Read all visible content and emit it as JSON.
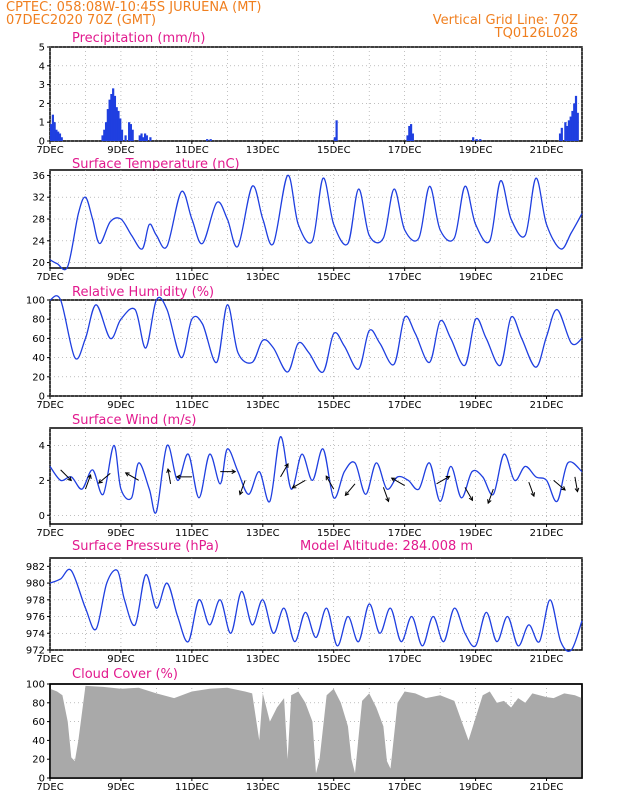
{
  "header": {
    "line1_left": "CPTEC:   058:08W-10:45S   JURUENA (MT)",
    "line2_left": "07DEC2020 70Z (GMT)",
    "line2_right": "Vertical Grid Line: 70Z",
    "line3_right": "TQ0126L028"
  },
  "colors": {
    "header": "#f07f1f",
    "title": "#e21a8e",
    "line": "#1f3fe0",
    "bars": "#1f3fe0",
    "cloud": "#a9a9a9"
  },
  "x_axis": {
    "labels": [
      "7DEC",
      "9DEC",
      "11DEC",
      "13DEC",
      "15DEC",
      "17DEC",
      "19DEC",
      "21DEC"
    ],
    "start_day": 7,
    "end_day": 22
  },
  "panels": {
    "precip": {
      "title": "Precipitation (mm/h)"
    },
    "temp": {
      "title": "Surface Temperature (nC)"
    },
    "rh": {
      "title": "Relative Humidity (%)"
    },
    "wind": {
      "title": "Surface Wind (m/s)"
    },
    "pres": {
      "title": "Surface Pressure (hPa)",
      "extra": "Model Altitude: 284.008 m"
    },
    "cloud": {
      "title": "Cloud Cover (%)"
    }
  },
  "chart_data": [
    {
      "type": "bar",
      "title": "Precipitation (mm/h)",
      "ylim": [
        0,
        5
      ],
      "yticks": [
        0,
        1,
        2,
        3,
        4,
        5
      ],
      "x": [
        7.0,
        7.05,
        7.1,
        7.15,
        7.2,
        7.25,
        7.3,
        8.45,
        8.5,
        8.55,
        8.6,
        8.65,
        8.7,
        8.75,
        8.8,
        8.85,
        8.9,
        8.95,
        9.0,
        9.1,
        9.2,
        9.25,
        9.3,
        9.5,
        9.55,
        9.6,
        9.65,
        9.7,
        9.8,
        11.4,
        11.5,
        15.0,
        15.05,
        17.05,
        17.1,
        17.15,
        17.2,
        18.9,
        19.0,
        19.1,
        21.35,
        21.4,
        21.5,
        21.55,
        21.6,
        21.65,
        21.7,
        21.75,
        21.8,
        21.85
      ],
      "values": [
        0.9,
        1.4,
        1.0,
        0.6,
        0.5,
        0.4,
        0.2,
        0.3,
        0.6,
        1.0,
        1.7,
        2.2,
        2.5,
        2.8,
        2.4,
        1.8,
        1.6,
        1.2,
        0.6,
        0.3,
        1.0,
        0.9,
        0.6,
        0.3,
        0.4,
        0.2,
        0.4,
        0.3,
        0.2,
        0.1,
        0.1,
        0.2,
        1.1,
        0.3,
        0.8,
        0.9,
        0.4,
        0.2,
        0.1,
        0.1,
        0.4,
        0.7,
        1.0,
        0.8,
        1.1,
        1.3,
        1.6,
        2.0,
        2.4,
        1.5
      ]
    },
    {
      "type": "line",
      "title": "Surface Temperature (nC)",
      "ylim": [
        19,
        37
      ],
      "yticks": [
        20,
        24,
        28,
        32,
        36
      ],
      "x": [
        7.0,
        7.2,
        7.5,
        7.8,
        8.0,
        8.2,
        8.4,
        8.7,
        9.0,
        9.3,
        9.6,
        9.8,
        10.0,
        10.3,
        10.7,
        11.0,
        11.3,
        11.7,
        12.0,
        12.3,
        12.7,
        13.0,
        13.3,
        13.7,
        14.0,
        14.4,
        14.7,
        15.0,
        15.4,
        15.7,
        16.0,
        16.4,
        16.7,
        17.0,
        17.4,
        17.7,
        18.0,
        18.4,
        18.7,
        19.0,
        19.4,
        19.7,
        20.0,
        20.4,
        20.7,
        21.0,
        21.4,
        21.7,
        22.0
      ],
      "values": [
        20.5,
        19.8,
        19.3,
        29.0,
        32.0,
        28.0,
        23.5,
        27.5,
        28.0,
        25.0,
        22.5,
        27.0,
        25.0,
        23.0,
        33.0,
        28.0,
        23.5,
        31.0,
        28.0,
        23.0,
        34.0,
        28.0,
        23.5,
        36.0,
        27.0,
        24.0,
        35.5,
        27.0,
        23.5,
        33.5,
        25.0,
        24.5,
        33.5,
        26.0,
        24.5,
        34.0,
        26.0,
        24.5,
        34.0,
        27.0,
        24.0,
        35.0,
        28.0,
        25.0,
        35.5,
        27.0,
        22.5,
        25.5,
        29.0
      ]
    },
    {
      "type": "line",
      "title": "Relative Humidity (%)",
      "ylim": [
        0,
        100
      ],
      "yticks": [
        0,
        20,
        40,
        60,
        80,
        100
      ],
      "x": [
        7.0,
        7.3,
        7.7,
        8.0,
        8.3,
        8.7,
        9.0,
        9.4,
        9.7,
        10.0,
        10.3,
        10.7,
        11.0,
        11.3,
        11.7,
        12.0,
        12.3,
        12.7,
        13.0,
        13.3,
        13.7,
        14.0,
        14.3,
        14.7,
        15.0,
        15.3,
        15.7,
        16.0,
        16.3,
        16.7,
        17.0,
        17.3,
        17.7,
        18.0,
        18.3,
        18.7,
        19.0,
        19.3,
        19.7,
        20.0,
        20.3,
        20.7,
        21.0,
        21.3,
        21.7,
        22.0
      ],
      "values": [
        100,
        100,
        40,
        60,
        95,
        60,
        80,
        90,
        50,
        100,
        90,
        40,
        80,
        75,
        35,
        95,
        45,
        35,
        58,
        50,
        25,
        55,
        45,
        25,
        65,
        52,
        28,
        68,
        55,
        33,
        82,
        65,
        35,
        78,
        60,
        32,
        80,
        60,
        32,
        82,
        60,
        30,
        62,
        90,
        55,
        60
      ]
    },
    {
      "type": "line",
      "title": "Surface Wind (m/s)",
      "ylim": [
        -0.5,
        5
      ],
      "yticks": [
        0,
        2,
        4
      ],
      "x": [
        7.0,
        7.3,
        7.6,
        7.9,
        8.2,
        8.5,
        8.8,
        9.0,
        9.3,
        9.5,
        9.8,
        10.0,
        10.3,
        10.6,
        10.9,
        11.2,
        11.5,
        11.8,
        12.0,
        12.3,
        12.6,
        12.9,
        13.2,
        13.5,
        13.8,
        14.1,
        14.4,
        14.7,
        15.0,
        15.3,
        15.6,
        15.9,
        16.2,
        16.5,
        16.8,
        17.1,
        17.4,
        17.7,
        18.0,
        18.3,
        18.6,
        18.9,
        19.2,
        19.5,
        19.8,
        20.1,
        20.4,
        20.7,
        21.0,
        21.3,
        21.6,
        22.0
      ],
      "values": [
        2.8,
        2.0,
        2.2,
        1.5,
        2.6,
        1.2,
        4.0,
        1.5,
        1.0,
        3.0,
        1.5,
        0.2,
        4.0,
        2.0,
        3.5,
        1.0,
        3.5,
        1.8,
        3.8,
        2.5,
        1.2,
        2.5,
        0.8,
        4.5,
        1.5,
        3.5,
        2.0,
        3.8,
        1.0,
        2.5,
        3.0,
        1.2,
        3.0,
        1.5,
        2.2,
        2.0,
        1.5,
        3.0,
        0.8,
        2.8,
        1.0,
        2.5,
        2.2,
        1.2,
        3.5,
        2.0,
        2.8,
        2.2,
        2.0,
        0.8,
        3.0,
        2.5
      ],
      "arrows": [
        {
          "x": 7.3,
          "speed": 2.6,
          "dir": 135
        },
        {
          "x": 8.0,
          "speed": 1.5,
          "dir": 20
        },
        {
          "x": 8.7,
          "speed": 2.4,
          "dir": 230
        },
        {
          "x": 9.5,
          "speed": 2.0,
          "dir": 300
        },
        {
          "x": 10.4,
          "speed": 1.8,
          "dir": 350
        },
        {
          "x": 11.0,
          "speed": 2.2,
          "dir": 270
        },
        {
          "x": 11.8,
          "speed": 2.5,
          "dir": 90
        },
        {
          "x": 12.5,
          "speed": 2.0,
          "dir": 200
        },
        {
          "x": 13.5,
          "speed": 2.2,
          "dir": 30
        },
        {
          "x": 14.2,
          "speed": 2.0,
          "dir": 240
        },
        {
          "x": 15.0,
          "speed": 1.5,
          "dir": 330
        },
        {
          "x": 15.6,
          "speed": 1.8,
          "dir": 220
        },
        {
          "x": 16.4,
          "speed": 1.6,
          "dir": 160
        },
        {
          "x": 17.0,
          "speed": 1.7,
          "dir": 300
        },
        {
          "x": 17.9,
          "speed": 1.8,
          "dir": 60
        },
        {
          "x": 18.7,
          "speed": 1.6,
          "dir": 150
        },
        {
          "x": 19.5,
          "speed": 1.5,
          "dir": 200
        },
        {
          "x": 20.5,
          "speed": 1.9,
          "dir": 160
        },
        {
          "x": 21.2,
          "speed": 2.0,
          "dir": 130
        },
        {
          "x": 21.8,
          "speed": 2.2,
          "dir": 170
        }
      ]
    },
    {
      "type": "line",
      "title": "Surface Pressure (hPa)",
      "ylim": [
        972,
        983
      ],
      "yticks": [
        972,
        974,
        976,
        978,
        980,
        982
      ],
      "x": [
        7.0,
        7.3,
        7.6,
        8.0,
        8.3,
        8.6,
        8.9,
        9.1,
        9.4,
        9.7,
        10.0,
        10.3,
        10.6,
        10.9,
        11.2,
        11.5,
        11.8,
        12.1,
        12.4,
        12.7,
        13.0,
        13.3,
        13.6,
        13.9,
        14.2,
        14.5,
        14.8,
        15.1,
        15.4,
        15.7,
        16.0,
        16.3,
        16.6,
        16.9,
        17.2,
        17.5,
        17.8,
        18.1,
        18.4,
        18.7,
        19.0,
        19.3,
        19.6,
        19.9,
        20.2,
        20.5,
        20.8,
        21.1,
        21.4,
        21.7,
        22.0
      ],
      "values": [
        980,
        980.5,
        981.5,
        977,
        974.5,
        980,
        981.5,
        978,
        975,
        981,
        977,
        980,
        976,
        973,
        978,
        975,
        978,
        974,
        979,
        975,
        978,
        974,
        977,
        973,
        976.5,
        973.5,
        977,
        972.5,
        976,
        973,
        977.5,
        974,
        977,
        973,
        976,
        972.5,
        976,
        973,
        977,
        974,
        972.5,
        976.5,
        973,
        976,
        972.5,
        975,
        973,
        978,
        973,
        972,
        975.5
      ]
    },
    {
      "type": "area",
      "title": "Cloud Cover (%)",
      "ylim": [
        0,
        100
      ],
      "yticks": [
        0,
        20,
        40,
        60,
        80,
        100
      ],
      "x": [
        7.0,
        7.2,
        7.35,
        7.5,
        7.6,
        7.7,
        7.8,
        8.0,
        8.5,
        9.0,
        9.5,
        10.0,
        10.5,
        11.0,
        11.5,
        12.0,
        12.5,
        12.7,
        12.9,
        13.0,
        13.2,
        13.4,
        13.6,
        13.7,
        13.8,
        14.0,
        14.2,
        14.4,
        14.5,
        14.6,
        14.8,
        15.0,
        15.2,
        15.4,
        15.5,
        15.6,
        15.8,
        16.0,
        16.2,
        16.4,
        16.5,
        16.6,
        16.8,
        17.0,
        17.3,
        17.6,
        18.0,
        18.4,
        18.8,
        19.2,
        19.4,
        19.6,
        19.8,
        20.0,
        20.2,
        20.4,
        20.6,
        20.8,
        21.0,
        21.2,
        21.5,
        21.8,
        22.0
      ],
      "values": [
        95,
        92,
        88,
        60,
        22,
        18,
        40,
        98,
        97,
        95,
        96,
        90,
        85,
        92,
        95,
        96,
        92,
        90,
        40,
        90,
        60,
        75,
        85,
        20,
        88,
        92,
        80,
        60,
        5,
        20,
        88,
        95,
        80,
        55,
        20,
        5,
        82,
        90,
        75,
        55,
        18,
        10,
        80,
        92,
        90,
        85,
        88,
        82,
        40,
        88,
        92,
        80,
        82,
        75,
        85,
        80,
        90,
        88,
        86,
        85,
        90,
        88,
        85
      ]
    }
  ]
}
